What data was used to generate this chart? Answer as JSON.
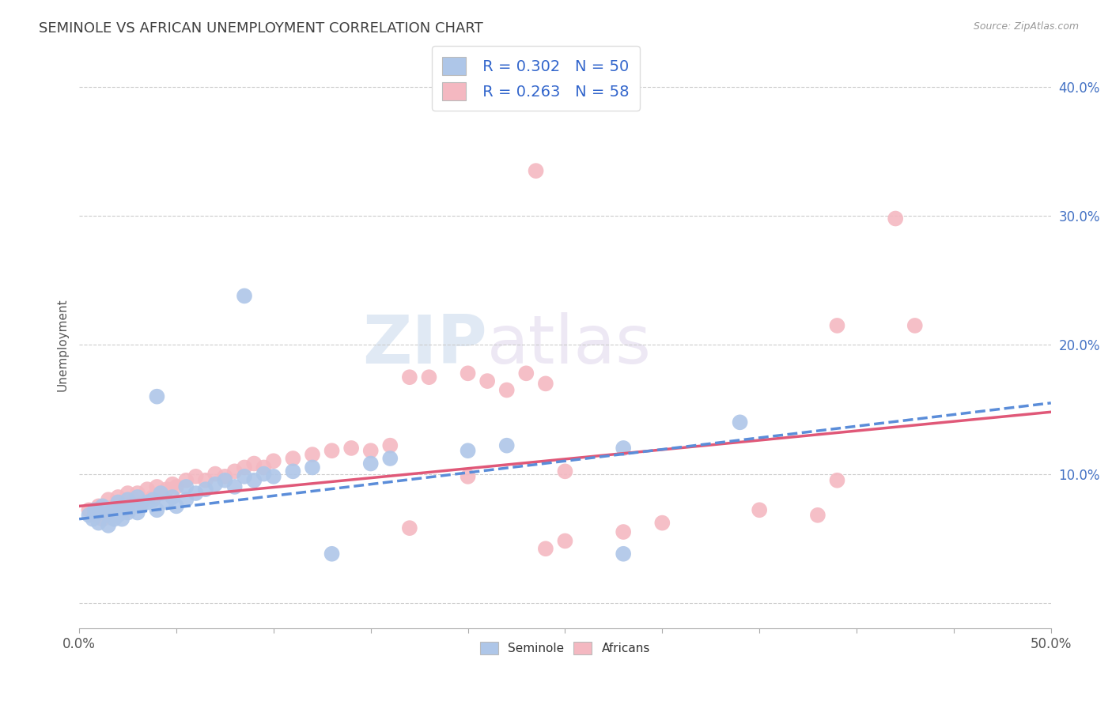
{
  "title": "SEMINOLE VS AFRICAN UNEMPLOYMENT CORRELATION CHART",
  "source": "Source: ZipAtlas.com",
  "ylabel": "Unemployment",
  "xlim": [
    0.0,
    0.5
  ],
  "ylim": [
    -0.02,
    0.42
  ],
  "xticks": [
    0.0,
    0.05,
    0.1,
    0.15,
    0.2,
    0.25,
    0.3,
    0.35,
    0.4,
    0.45,
    0.5
  ],
  "ytick_positions": [
    0.0,
    0.1,
    0.2,
    0.3,
    0.4
  ],
  "ytick_labels": [
    "",
    "10.0%",
    "20.0%",
    "30.0%",
    "40.0%"
  ],
  "seminole_color": "#aec6e8",
  "africans_color": "#f4b8c1",
  "trend_seminole_color": "#5b8dd9",
  "trend_africans_color": "#e05878",
  "R_seminole": 0.302,
  "N_seminole": 50,
  "R_africans": 0.263,
  "N_africans": 58,
  "watermark_zip": "ZIP",
  "watermark_atlas": "atlas",
  "seminole_trend_start": 0.065,
  "seminole_trend_end": 0.155,
  "africans_trend_start": 0.075,
  "africans_trend_end": 0.148,
  "seminole_points": [
    [
      0.005,
      0.068
    ],
    [
      0.007,
      0.065
    ],
    [
      0.008,
      0.072
    ],
    [
      0.01,
      0.062
    ],
    [
      0.01,
      0.07
    ],
    [
      0.012,
      0.075
    ],
    [
      0.015,
      0.068
    ],
    [
      0.015,
      0.06
    ],
    [
      0.017,
      0.072
    ],
    [
      0.018,
      0.065
    ],
    [
      0.02,
      0.078
    ],
    [
      0.02,
      0.068
    ],
    [
      0.022,
      0.072
    ],
    [
      0.022,
      0.065
    ],
    [
      0.025,
      0.08
    ],
    [
      0.025,
      0.07
    ],
    [
      0.028,
      0.075
    ],
    [
      0.03,
      0.082
    ],
    [
      0.03,
      0.07
    ],
    [
      0.032,
      0.075
    ],
    [
      0.035,
      0.078
    ],
    [
      0.038,
      0.08
    ],
    [
      0.04,
      0.072
    ],
    [
      0.042,
      0.085
    ],
    [
      0.045,
      0.078
    ],
    [
      0.048,
      0.082
    ],
    [
      0.05,
      0.075
    ],
    [
      0.055,
      0.09
    ],
    [
      0.055,
      0.08
    ],
    [
      0.06,
      0.085
    ],
    [
      0.065,
      0.088
    ],
    [
      0.07,
      0.092
    ],
    [
      0.075,
      0.095
    ],
    [
      0.08,
      0.09
    ],
    [
      0.085,
      0.098
    ],
    [
      0.09,
      0.095
    ],
    [
      0.095,
      0.1
    ],
    [
      0.1,
      0.098
    ],
    [
      0.11,
      0.102
    ],
    [
      0.12,
      0.105
    ],
    [
      0.04,
      0.16
    ],
    [
      0.085,
      0.238
    ],
    [
      0.15,
      0.108
    ],
    [
      0.16,
      0.112
    ],
    [
      0.2,
      0.118
    ],
    [
      0.22,
      0.122
    ],
    [
      0.28,
      0.038
    ],
    [
      0.13,
      0.038
    ],
    [
      0.34,
      0.14
    ],
    [
      0.28,
      0.12
    ]
  ],
  "africans_points": [
    [
      0.005,
      0.072
    ],
    [
      0.008,
      0.068
    ],
    [
      0.01,
      0.075
    ],
    [
      0.012,
      0.065
    ],
    [
      0.015,
      0.08
    ],
    [
      0.015,
      0.07
    ],
    [
      0.018,
      0.075
    ],
    [
      0.02,
      0.082
    ],
    [
      0.022,
      0.078
    ],
    [
      0.025,
      0.085
    ],
    [
      0.025,
      0.072
    ],
    [
      0.028,
      0.08
    ],
    [
      0.03,
      0.085
    ],
    [
      0.032,
      0.078
    ],
    [
      0.035,
      0.088
    ],
    [
      0.038,
      0.082
    ],
    [
      0.04,
      0.09
    ],
    [
      0.042,
      0.085
    ],
    [
      0.045,
      0.088
    ],
    [
      0.048,
      0.092
    ],
    [
      0.05,
      0.09
    ],
    [
      0.055,
      0.095
    ],
    [
      0.06,
      0.098
    ],
    [
      0.065,
      0.095
    ],
    [
      0.07,
      0.1
    ],
    [
      0.075,
      0.098
    ],
    [
      0.08,
      0.102
    ],
    [
      0.085,
      0.105
    ],
    [
      0.09,
      0.108
    ],
    [
      0.095,
      0.105
    ],
    [
      0.1,
      0.11
    ],
    [
      0.11,
      0.112
    ],
    [
      0.12,
      0.115
    ],
    [
      0.13,
      0.118
    ],
    [
      0.14,
      0.12
    ],
    [
      0.15,
      0.118
    ],
    [
      0.16,
      0.122
    ],
    [
      0.17,
      0.175
    ],
    [
      0.18,
      0.175
    ],
    [
      0.2,
      0.178
    ],
    [
      0.21,
      0.172
    ],
    [
      0.23,
      0.178
    ],
    [
      0.22,
      0.165
    ],
    [
      0.24,
      0.17
    ],
    [
      0.17,
      0.058
    ],
    [
      0.3,
      0.062
    ],
    [
      0.38,
      0.068
    ],
    [
      0.25,
      0.048
    ],
    [
      0.28,
      0.055
    ],
    [
      0.39,
      0.215
    ],
    [
      0.43,
      0.215
    ],
    [
      0.2,
      0.098
    ],
    [
      0.25,
      0.102
    ],
    [
      0.235,
      0.335
    ],
    [
      0.42,
      0.298
    ],
    [
      0.24,
      0.042
    ],
    [
      0.35,
      0.072
    ],
    [
      0.39,
      0.095
    ]
  ]
}
